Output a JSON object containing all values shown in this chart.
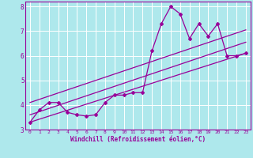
{
  "title": "",
  "xlabel": "Windchill (Refroidissement éolien,°C)",
  "ylabel": "",
  "xlim": [
    -0.5,
    23.5
  ],
  "ylim": [
    3.0,
    8.2
  ],
  "yticks": [
    3,
    4,
    5,
    6,
    7,
    8
  ],
  "xticks": [
    0,
    1,
    2,
    3,
    4,
    5,
    6,
    7,
    8,
    9,
    10,
    11,
    12,
    13,
    14,
    15,
    16,
    17,
    18,
    19,
    20,
    21,
    22,
    23
  ],
  "color": "#990099",
  "bg_color": "#aee8ec",
  "grid_color": "#ffffff",
  "data_x": [
    0,
    1,
    2,
    3,
    4,
    5,
    6,
    7,
    8,
    9,
    10,
    11,
    12,
    13,
    14,
    15,
    16,
    17,
    18,
    19,
    20,
    21,
    22,
    23
  ],
  "data_y": [
    3.3,
    3.8,
    4.1,
    4.1,
    3.7,
    3.6,
    3.55,
    3.6,
    4.1,
    4.4,
    4.4,
    4.5,
    4.5,
    6.2,
    7.3,
    8.0,
    7.7,
    6.7,
    7.3,
    6.8,
    7.3,
    6.0,
    6.0,
    6.1
  ],
  "trend1_x": [
    0,
    23
  ],
  "trend1_y": [
    3.6,
    6.55
  ],
  "trend2_x": [
    0,
    23
  ],
  "trend2_y": [
    4.1,
    7.05
  ],
  "trend3_x": [
    0,
    23
  ],
  "trend3_y": [
    3.3,
    6.1
  ]
}
